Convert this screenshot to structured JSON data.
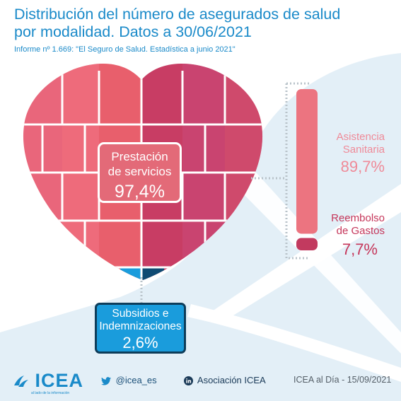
{
  "header": {
    "title_line1": "Distribución del número de asegurados de salud",
    "title_line2": "por modalidad. Datos a 30/06/2021",
    "subtitle": "Informe nº 1.669: \"El Seguro de Salud. Estadística a junio 2021\""
  },
  "chart_data": {
    "type": "bar",
    "categories": [
      "Prestación de servicios",
      "Subsidios e Indemnizaciones"
    ],
    "values": [
      97.4,
      2.6
    ],
    "value_labels": [
      "97,4%",
      "2,6%"
    ],
    "breakdown": {
      "of": "Prestación de servicios",
      "categories": [
        "Asistencia Sanitaria",
        "Reembolso de Gastos"
      ],
      "values": [
        89.7,
        7.7
      ],
      "value_labels": [
        "89,7%",
        "7,7%"
      ]
    },
    "colors": {
      "prestacion": "#e36a78",
      "asistencia": "#ec7480",
      "reembolso": "#c23a5f",
      "subsidios": "#1a9cdc"
    }
  },
  "labels": {
    "prestacion_line1": "Prestación",
    "prestacion_line2": "de servicios",
    "subsidios_line1": "Subsidios e",
    "subsidios_line2": "Indemnizaciones",
    "asistencia_line1": "Asistencia",
    "asistencia_line2": "Sanitaria",
    "reembolso_line1": "Reembolso",
    "reembolso_line2": "de Gastos"
  },
  "footer": {
    "logo_text": "ICEA",
    "logo_tagline": "al lado de la información",
    "twitter": "@icea_es",
    "linkedin": "Asociación ICEA",
    "date": "ICEA al Día - 15/09/2021"
  },
  "icons": {
    "twitter": "twitter-bird-icon",
    "linkedin": "linkedin-in-icon",
    "logo": "icea-wave-icon"
  }
}
